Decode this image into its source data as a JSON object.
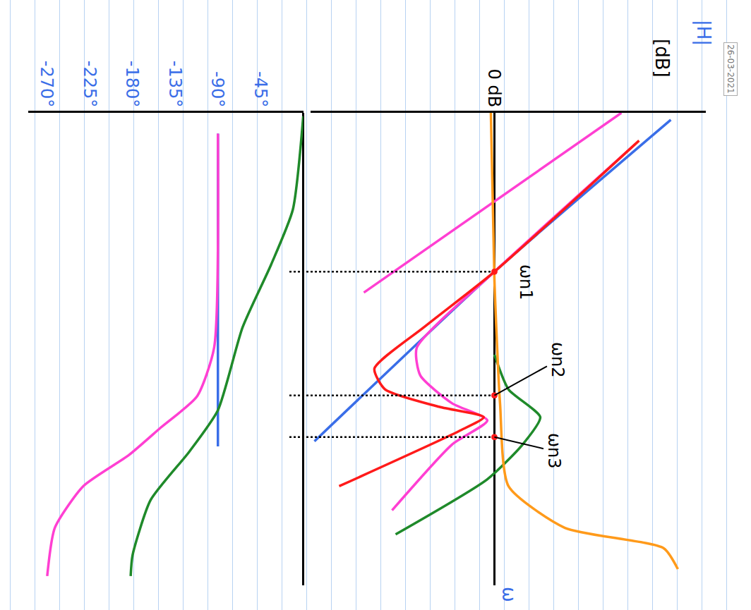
{
  "chart_data": [
    {
      "type": "line",
      "y_label": "|H|",
      "y_unit": "[dB]",
      "x_label": "ω",
      "xlim": [
        0,
        10.2
      ],
      "ylim": [
        -52,
        60
      ],
      "yticks": [
        {
          "value": 0,
          "label": "0 dB"
        }
      ],
      "tick_labels": "y",
      "grid": false,
      "series": [
        {
          "color": "#3a6ee8",
          "line_style": "solid",
          "x": [
            0.15,
            3.43,
            7.09
          ],
          "values": [
            50,
            0,
            -51
          ]
        },
        {
          "color": "#ff3fd2",
          "line_style": "solid",
          "x": [
            0,
            3.88
          ],
          "values": [
            36,
            -37
          ]
        },
        {
          "color": "#ff3fd2",
          "line_style": "solid",
          "x": [
            0.67,
            3.43,
            5.07,
            5.67,
            6.27,
            6.64,
            7.16,
            8.58
          ],
          "values": [
            40,
            0,
            -22,
            -21,
            -12,
            -2,
            -12,
            -29
          ]
        },
        {
          "color": "#ff1a1a",
          "line_style": "solid",
          "x": [
            0.6,
            3.43,
            4.63,
            5.52,
            5.97,
            6.34,
            6.57,
            6.87,
            8.06
          ],
          "values": [
            41,
            0,
            -20,
            -34,
            -31,
            -16,
            -3,
            -10,
            -44
          ]
        },
        {
          "color": "#1f8a2a",
          "line_style": "solid",
          "x": [
            5.22,
            5.97,
            6.57,
            7.16,
            7.91,
            9.1
          ],
          "values": [
            0,
            4,
            13,
            8,
            -2,
            -28
          ]
        },
        {
          "color": "#ff9a1a",
          "line_style": "solid",
          "x": [
            0,
            3.58,
            6.27,
            8.06,
            8.96,
            9.4,
            9.85
          ],
          "values": [
            -1,
            0,
            1.6,
            4,
            20,
            48,
            52
          ]
        }
      ],
      "annotations": [
        {
          "text": "ωn1",
          "x": 3.43
        },
        {
          "text": "ωn2",
          "x": 6.1
        },
        {
          "text": "ωn3",
          "x": 7.0
        }
      ]
    },
    {
      "type": "line",
      "xlim": [
        0,
        10.2
      ],
      "ylim": [
        -290,
        0
      ],
      "yticks": [
        {
          "value": -45,
          "label": "-45°"
        },
        {
          "value": -90,
          "label": "-90°"
        },
        {
          "value": -135,
          "label": "-135°"
        },
        {
          "value": -180,
          "label": "-180°"
        },
        {
          "value": -225,
          "label": "-225°"
        },
        {
          "value": -270,
          "label": "-270°"
        }
      ],
      "tick_labels": "y",
      "grid": false,
      "series": [
        {
          "color": "#3a6ee8",
          "line_style": "solid",
          "x": [
            0.45,
            7.2
          ],
          "values": [
            -90,
            -90
          ]
        },
        {
          "color": "#1f8a2a",
          "line_style": "solid",
          "x": [
            0.07,
            2.09,
            3.28,
            4.63,
            6.42,
            7.31,
            8.36,
            9.55,
            10.0
          ],
          "values": [
            0,
            -11,
            -34,
            -64,
            -90,
            -120,
            -161,
            -180,
            -182
          ]
        },
        {
          "color": "#ff3fd2",
          "line_style": "solid",
          "x": [
            0.45,
            5.07,
            6.12,
            6.79,
            7.39,
            8.06,
            8.96,
            10.0
          ],
          "values": [
            -90,
            -94,
            -112,
            -150,
            -184,
            -232,
            -262,
            -270
          ]
        }
      ]
    }
  ],
  "stamp": "26-03-2021"
}
